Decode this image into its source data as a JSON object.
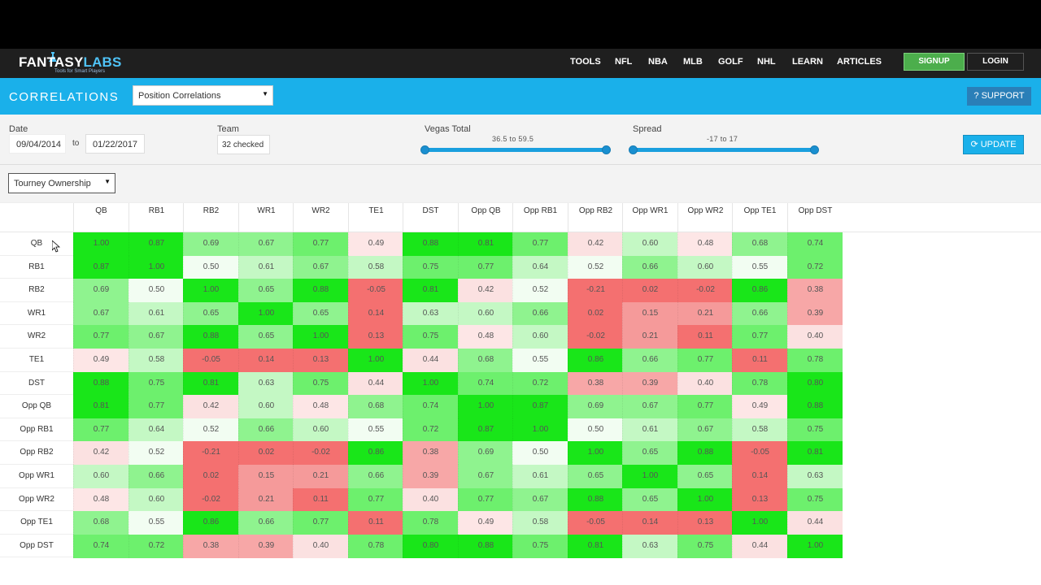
{
  "nav": {
    "brand_left": "FANTASY",
    "brand_right": "LABS",
    "tagline": "Tools for Smart Players",
    "links": [
      "TOOLS",
      "NFL",
      "NBA",
      "MLB",
      "GOLF",
      "NHL",
      "LEARN",
      "ARTICLES"
    ],
    "signup": "SIGNUP",
    "login": "LOGIN"
  },
  "header": {
    "title": "CORRELATIONS",
    "select_value": "Position Correlations",
    "support": "SUPPORT"
  },
  "filters": {
    "date_label": "Date",
    "date_from": "09/04/2014",
    "date_to_sep": "to",
    "date_to": "01/22/2017",
    "team_label": "Team",
    "team_value": "32 checked",
    "vegas_label": "Vegas Total",
    "vegas_range": "36.5 to 59.5",
    "spread_label": "Spread",
    "spread_range": "-17 to 17",
    "update": "UPDATE"
  },
  "ownership_select": "Tourney Ownership",
  "matrix": {
    "columns": [
      "QB",
      "RB1",
      "RB2",
      "WR1",
      "WR2",
      "TE1",
      "DST",
      "Opp QB",
      "Opp RB1",
      "Opp RB2",
      "Opp WR1",
      "Opp WR2",
      "Opp TE1",
      "Opp DST"
    ],
    "rows": [
      {
        "label": "QB",
        "values": [
          "1.00",
          "0.87",
          "0.69",
          "0.67",
          "0.77",
          "0.49",
          "0.88",
          "0.81",
          "0.77",
          "0.42",
          "0.60",
          "0.48",
          "0.68",
          "0.74"
        ]
      },
      {
        "label": "RB1",
        "values": [
          "0.87",
          "1.00",
          "0.50",
          "0.61",
          "0.67",
          "0.58",
          "0.75",
          "0.77",
          "0.64",
          "0.52",
          "0.66",
          "0.60",
          "0.55",
          "0.72"
        ]
      },
      {
        "label": "RB2",
        "values": [
          "0.69",
          "0.50",
          "1.00",
          "0.65",
          "0.88",
          "-0.05",
          "0.81",
          "0.42",
          "0.52",
          "-0.21",
          "0.02",
          "-0.02",
          "0.86",
          "0.38"
        ]
      },
      {
        "label": "WR1",
        "values": [
          "0.67",
          "0.61",
          "0.65",
          "1.00",
          "0.65",
          "0.14",
          "0.63",
          "0.60",
          "0.66",
          "0.02",
          "0.15",
          "0.21",
          "0.66",
          "0.39"
        ]
      },
      {
        "label": "WR2",
        "values": [
          "0.77",
          "0.67",
          "0.88",
          "0.65",
          "1.00",
          "0.13",
          "0.75",
          "0.48",
          "0.60",
          "-0.02",
          "0.21",
          "0.11",
          "0.77",
          "0.40"
        ]
      },
      {
        "label": "TE1",
        "values": [
          "0.49",
          "0.58",
          "-0.05",
          "0.14",
          "0.13",
          "1.00",
          "0.44",
          "0.68",
          "0.55",
          "0.86",
          "0.66",
          "0.77",
          "0.11",
          "0.78"
        ]
      },
      {
        "label": "DST",
        "values": [
          "0.88",
          "0.75",
          "0.81",
          "0.63",
          "0.75",
          "0.44",
          "1.00",
          "0.74",
          "0.72",
          "0.38",
          "0.39",
          "0.40",
          "0.78",
          "0.80"
        ]
      },
      {
        "label": "Opp QB",
        "values": [
          "0.81",
          "0.77",
          "0.42",
          "0.60",
          "0.48",
          "0.68",
          "0.74",
          "1.00",
          "0.87",
          "0.69",
          "0.67",
          "0.77",
          "0.49",
          "0.88"
        ]
      },
      {
        "label": "Opp RB1",
        "values": [
          "0.77",
          "0.64",
          "0.52",
          "0.66",
          "0.60",
          "0.55",
          "0.72",
          "0.87",
          "1.00",
          "0.50",
          "0.61",
          "0.67",
          "0.58",
          "0.75"
        ]
      },
      {
        "label": "Opp RB2",
        "values": [
          "0.42",
          "0.52",
          "-0.21",
          "0.02",
          "-0.02",
          "0.86",
          "0.38",
          "0.69",
          "0.50",
          "1.00",
          "0.65",
          "0.88",
          "-0.05",
          "0.81"
        ]
      },
      {
        "label": "Opp WR1",
        "values": [
          "0.60",
          "0.66",
          "0.02",
          "0.15",
          "0.21",
          "0.66",
          "0.39",
          "0.67",
          "0.61",
          "0.65",
          "1.00",
          "0.65",
          "0.14",
          "0.63"
        ]
      },
      {
        "label": "Opp WR2",
        "values": [
          "0.48",
          "0.60",
          "-0.02",
          "0.21",
          "0.11",
          "0.77",
          "0.40",
          "0.77",
          "0.67",
          "0.88",
          "0.65",
          "1.00",
          "0.13",
          "0.75"
        ]
      },
      {
        "label": "Opp TE1",
        "values": [
          "0.68",
          "0.55",
          "0.86",
          "0.66",
          "0.77",
          "0.11",
          "0.78",
          "0.49",
          "0.58",
          "-0.05",
          "0.14",
          "0.13",
          "1.00",
          "0.44"
        ]
      },
      {
        "label": "Opp DST",
        "values": [
          "0.74",
          "0.72",
          "0.38",
          "0.39",
          "0.40",
          "0.78",
          "0.80",
          "0.88",
          "0.75",
          "0.81",
          "0.63",
          "0.75",
          "0.44",
          "1.00"
        ]
      }
    ]
  },
  "colors": {
    "accent_blue": "#1ab0ea",
    "strong_green": "#19e619",
    "strong_red": "#f47070"
  }
}
